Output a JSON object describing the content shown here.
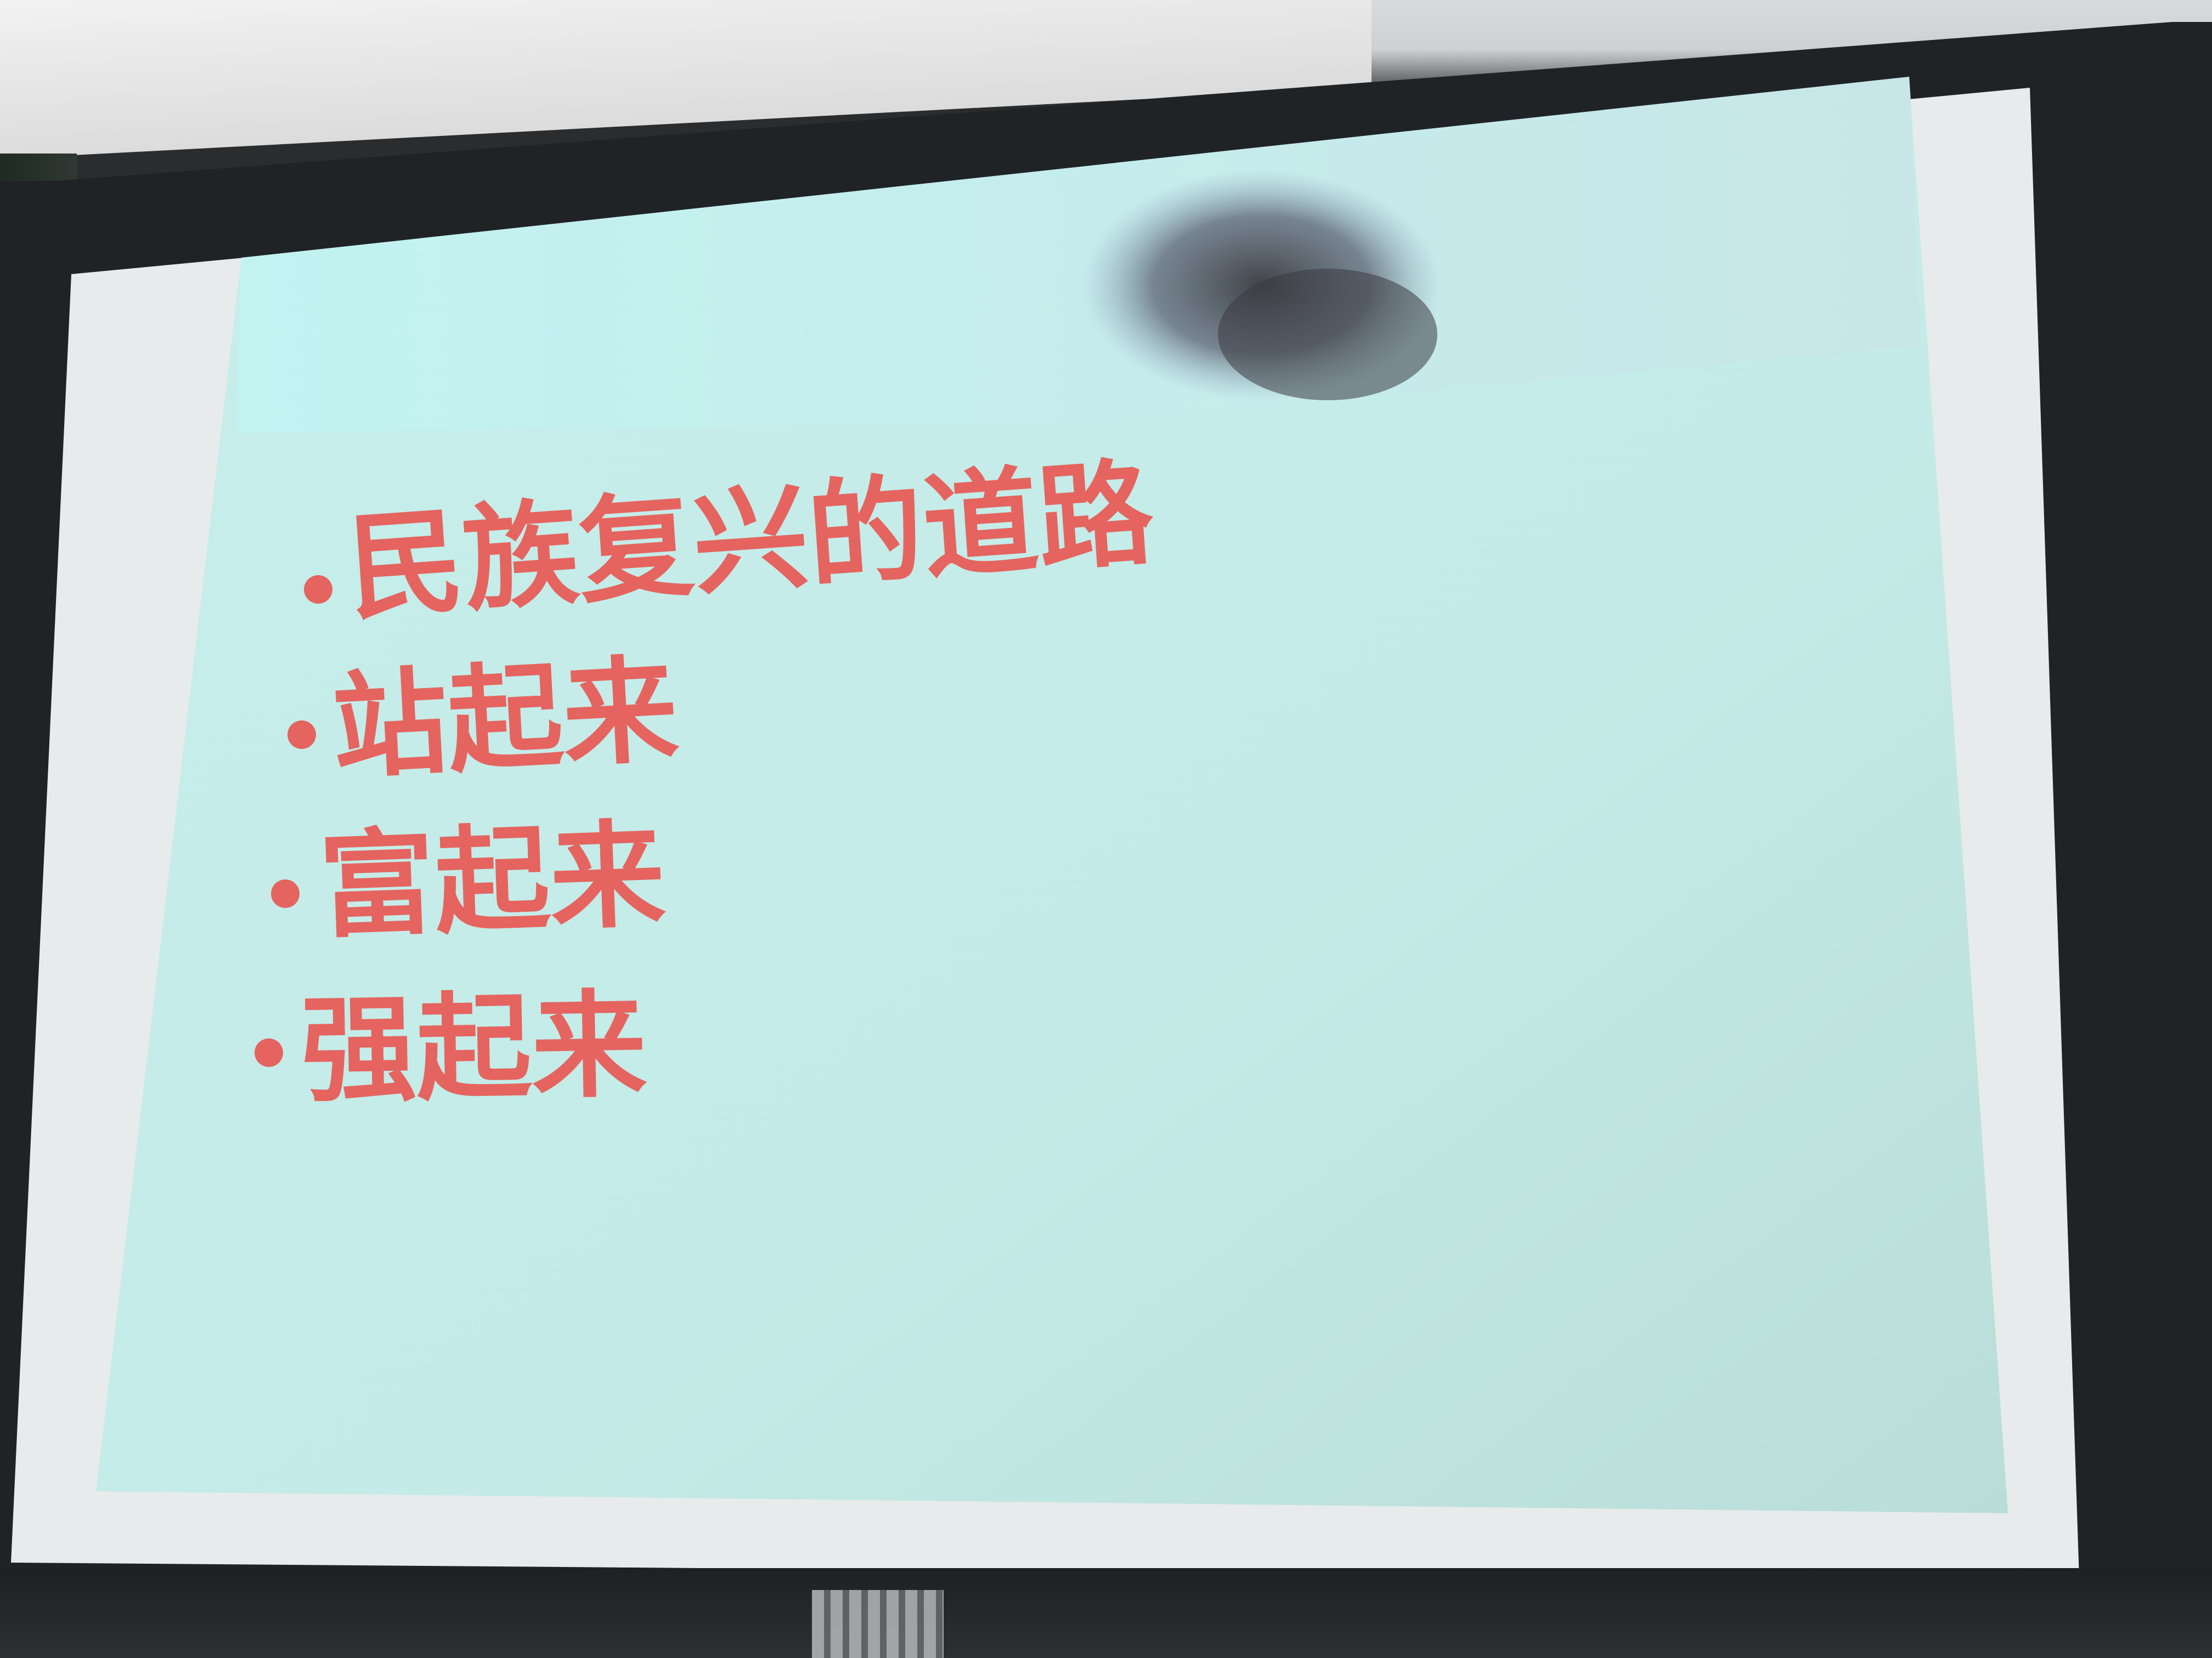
{
  "slide": {
    "bullets": [
      {
        "text": "民族复兴的道路"
      },
      {
        "text": "站起来"
      },
      {
        "text": "富起来"
      },
      {
        "text": "强起来"
      }
    ]
  },
  "colors": {
    "slide_background": "#c4ece9",
    "bullet_text": "#e5645f",
    "screen_frame": "#e9ebeb",
    "projector_bezel": "#202326"
  }
}
